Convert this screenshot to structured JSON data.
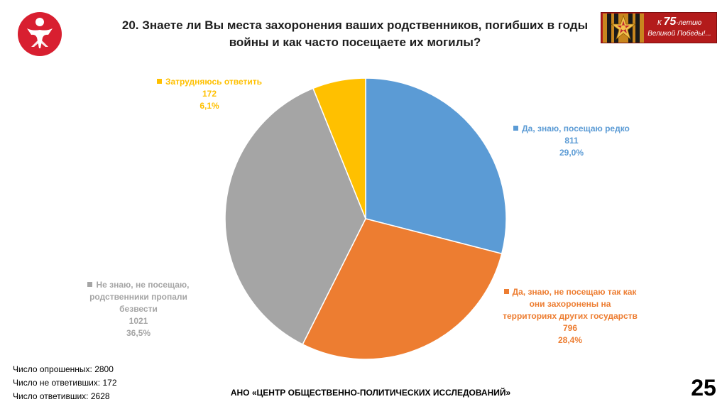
{
  "slide": {
    "title": "20. Знаете ли Вы места захоронения ваших родственников, погибших в годы войны и как часто посещаете их могилы?",
    "banner": {
      "prefix": "К",
      "number": "75",
      "suffix": "-летию",
      "line2": "Великой Победы!..."
    },
    "stats": [
      "Число опрошенных: 2800",
      "Число не ответивших: 172",
      "Число ответивших: 2628"
    ],
    "footer": "АНО «ЦЕНТР ОБЩЕСТВЕННО-ПОЛИТИЧЕСКИХ ИССЛЕДОВАНИЙ»",
    "page_number": "25",
    "logo_colors": {
      "circle": "#d81f30",
      "figure": "#ffffff"
    }
  },
  "chart_data": {
    "type": "pie",
    "title": "20. Знаете ли Вы места захоронения ваших родственников, погибших в годы войны и как часто посещаете их могилы?",
    "start_angle_deg": 0,
    "direction": "clockwise",
    "slices": [
      {
        "label": "Да, знаю, посещаю редко",
        "count": "811",
        "percent_text": "29,0%",
        "value": 29.0,
        "color": "#5b9bd5"
      },
      {
        "label": "Да, знаю, не посещаю так как они захоронены на территориях других государств",
        "count": "796",
        "percent_text": "28,4%",
        "value": 28.4,
        "color": "#ed7d31"
      },
      {
        "label": "Не знаю, не посещаю, родственники пропали безвести",
        "count": "1021",
        "percent_text": "36,5%",
        "value": 36.5,
        "color": "#a5a5a5"
      },
      {
        "label": "Затрудняюсь ответить",
        "count": "172",
        "percent_text": "6,1%",
        "value": 6.1,
        "color": "#ffc000"
      }
    ]
  }
}
